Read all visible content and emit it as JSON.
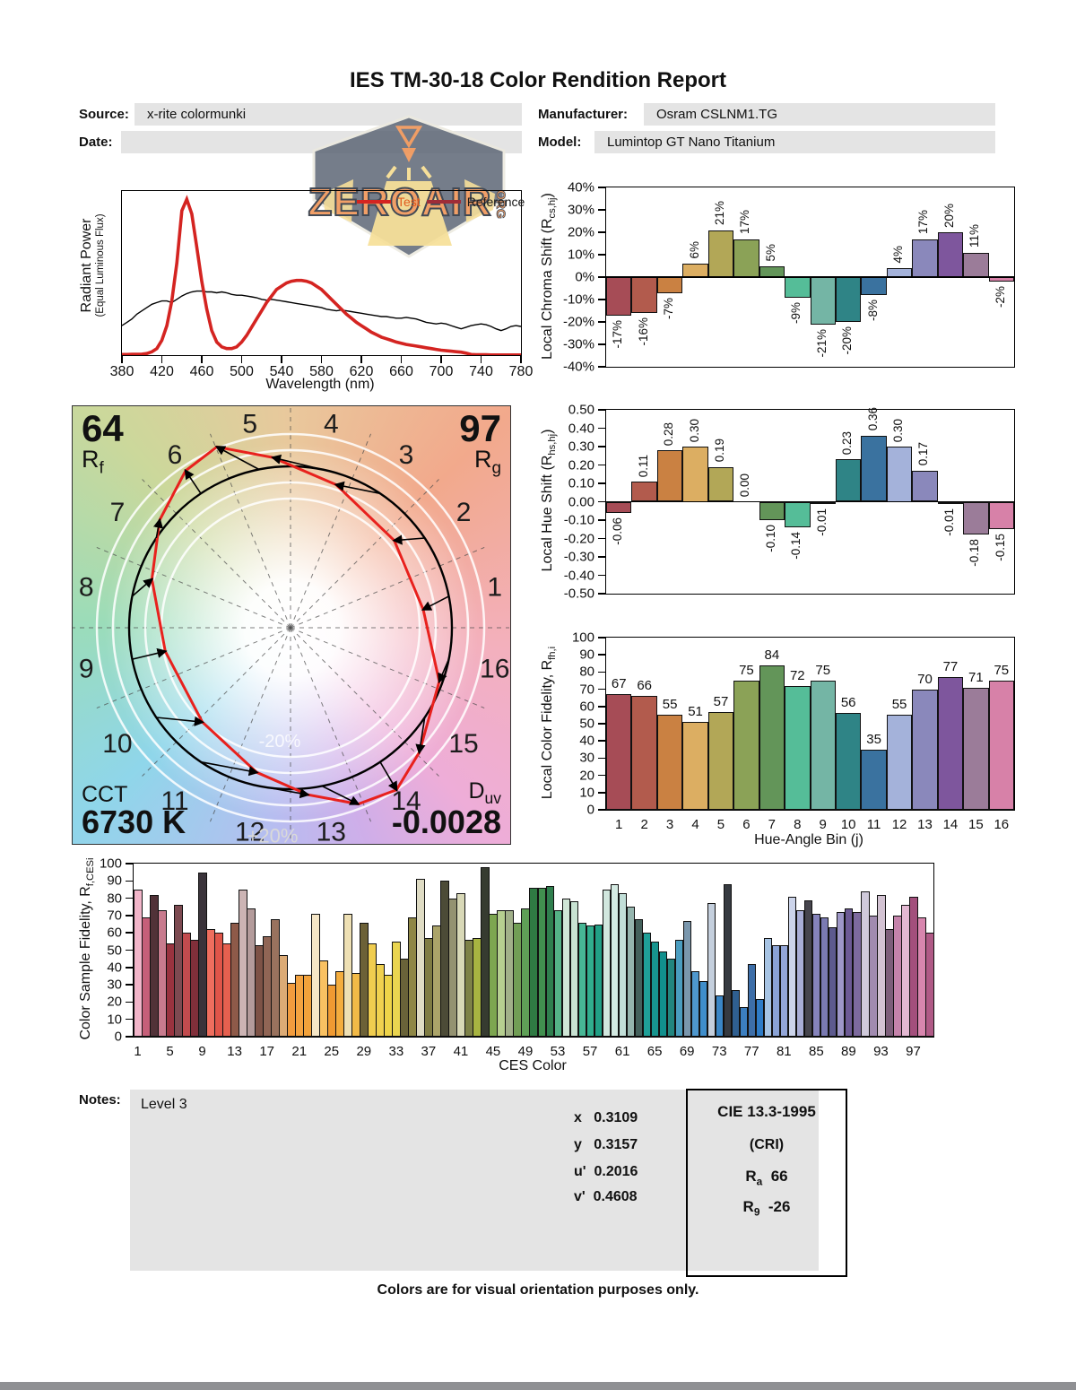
{
  "page": {
    "title": "IES TM-30-18 Color Rendition Report",
    "footer": "Colors are for visual orientation purposes only."
  },
  "fields": {
    "source_label": "Source:",
    "source_value": "x-rite colormunki",
    "date_label": "Date:",
    "date_value": "",
    "manufacturer_label": "Manufacturer:",
    "manufacturer_value": "Osram CSLNM1.TG",
    "model_label": "Model:",
    "model_value": "Lumintop GT Nano Titanium"
  },
  "logo": {
    "brand": "ZEROAIR",
    "suffix": "ORG"
  },
  "notes": {
    "label": "Notes:",
    "value": "Level 3"
  },
  "chromaticity": [
    {
      "label": "x",
      "value": "0.3109"
    },
    {
      "label": "y",
      "value": "0.3157"
    },
    {
      "label": "u'",
      "value": "0.2016"
    },
    {
      "label": "v'",
      "value": "0.4608"
    }
  ],
  "cie": {
    "title": "CIE 13.3-1995",
    "subtitle": "(CRI)",
    "ra_pre": "R",
    "ra_sub": "a",
    "ra_value": "66",
    "r9_pre": "R",
    "r9_sub": "9",
    "r9_value": "-26"
  },
  "bin_colors": [
    "#a64c56",
    "#b25b4d",
    "#ca8142",
    "#dcae62",
    "#b2a757",
    "#8ba257",
    "#639559",
    "#55bd98",
    "#74b5a5",
    "#2f8486",
    "#3a729f",
    "#a4b2da",
    "#8a88bb",
    "#7e569d",
    "#9b7c99",
    "#d781a8"
  ],
  "chart_data": [
    {
      "id": "spd",
      "type": "line",
      "xlabel": "Wavelength (nm)",
      "ylabel_line1": "Radiant Power",
      "ylabel_line2": "(Equal Luminous Flux)",
      "legend": [
        "Test",
        "Reference"
      ],
      "test_color": "#d42421",
      "reference_color": "#000000",
      "xlim": [
        380,
        780
      ],
      "x_tick_step": 40,
      "x_ticks": [
        "380",
        "420",
        "460",
        "500",
        "540",
        "580",
        "620",
        "660",
        "700",
        "740",
        "780"
      ],
      "x": [
        380,
        385,
        390,
        395,
        400,
        405,
        410,
        415,
        420,
        425,
        430,
        435,
        440,
        445,
        450,
        455,
        460,
        465,
        470,
        475,
        480,
        485,
        490,
        495,
        500,
        505,
        510,
        515,
        520,
        525,
        530,
        535,
        540,
        545,
        550,
        555,
        560,
        565,
        570,
        575,
        580,
        585,
        590,
        595,
        600,
        605,
        610,
        615,
        620,
        625,
        630,
        635,
        640,
        645,
        650,
        655,
        660,
        665,
        670,
        675,
        680,
        685,
        690,
        695,
        700,
        705,
        710,
        715,
        720,
        725,
        730,
        735,
        740,
        745,
        750,
        755,
        760,
        765,
        770,
        775,
        780
      ],
      "series": [
        {
          "name": "Test",
          "values": [
            0.004,
            0.004,
            0.005,
            0.005,
            0.006,
            0.01,
            0.02,
            0.04,
            0.09,
            0.18,
            0.33,
            0.56,
            0.88,
            0.95,
            0.86,
            0.66,
            0.45,
            0.28,
            0.15,
            0.08,
            0.05,
            0.04,
            0.04,
            0.05,
            0.08,
            0.12,
            0.17,
            0.22,
            0.27,
            0.32,
            0.36,
            0.4,
            0.42,
            0.44,
            0.45,
            0.455,
            0.455,
            0.45,
            0.44,
            0.42,
            0.4,
            0.37,
            0.34,
            0.31,
            0.28,
            0.25,
            0.225,
            0.2,
            0.18,
            0.16,
            0.14,
            0.125,
            0.11,
            0.1,
            0.09,
            0.08,
            0.072,
            0.065,
            0.06,
            0.055,
            0.05,
            0.045,
            0.04,
            0.035,
            0.03,
            0.027,
            0.024,
            0.021,
            0.018,
            0.012,
            0.004,
            0.003,
            0.002,
            0.002,
            0.001,
            0.001,
            0.001,
            0.001,
            0.001,
            0.001,
            0.001
          ]
        },
        {
          "name": "Reference",
          "values": [
            0.18,
            0.2,
            0.22,
            0.25,
            0.27,
            0.29,
            0.31,
            0.32,
            0.33,
            0.33,
            0.32,
            0.34,
            0.36,
            0.375,
            0.385,
            0.39,
            0.39,
            0.385,
            0.385,
            0.38,
            0.385,
            0.38,
            0.37,
            0.365,
            0.365,
            0.36,
            0.355,
            0.35,
            0.34,
            0.335,
            0.34,
            0.335,
            0.33,
            0.325,
            0.32,
            0.315,
            0.31,
            0.305,
            0.3,
            0.295,
            0.29,
            0.28,
            0.275,
            0.27,
            0.275,
            0.27,
            0.265,
            0.26,
            0.255,
            0.25,
            0.245,
            0.24,
            0.235,
            0.235,
            0.23,
            0.225,
            0.225,
            0.23,
            0.225,
            0.22,
            0.21,
            0.2,
            0.195,
            0.19,
            0.195,
            0.19,
            0.18,
            0.17,
            0.16,
            0.17,
            0.18,
            0.185,
            0.19,
            0.185,
            0.175,
            0.16,
            0.15,
            0.16,
            0.175,
            0.18,
            0.175
          ]
        }
      ]
    },
    {
      "id": "chroma_shift",
      "type": "bar",
      "ylabel_parts": {
        "pre": "Local Chroma Shift (R",
        "sub": "cs,hj",
        "post": ")"
      },
      "ylim": [
        -40,
        40
      ],
      "y_ticks": [
        "40%",
        "30%",
        "20%",
        "10%",
        "0%",
        "-10%",
        "-20%",
        "-30%",
        "-40%"
      ],
      "values": [
        -17,
        -16,
        -7,
        6,
        21,
        17,
        5,
        -9,
        -21,
        -20,
        -8,
        4,
        17,
        20,
        11,
        -2
      ],
      "labels": [
        "-17%",
        "-16%",
        "-7%",
        "6%",
        "21%",
        "17%",
        "5%",
        "-9%",
        "-21%",
        "-20%",
        "-8%",
        "4%",
        "17%",
        "20%",
        "11%",
        "-2%"
      ]
    },
    {
      "id": "hue_shift",
      "type": "bar",
      "ylabel_parts": {
        "pre": "Local Hue Shift (R",
        "sub": "hs,hj",
        "post": ")"
      },
      "ylim": [
        -0.5,
        0.5
      ],
      "y_ticks": [
        "0.50",
        "0.40",
        "0.30",
        "0.20",
        "0.10",
        "0.00",
        "-0.10",
        "-0.20",
        "-0.30",
        "-0.40",
        "-0.50"
      ],
      "values": [
        -0.06,
        0.11,
        0.28,
        0.3,
        0.19,
        0.0,
        -0.1,
        -0.14,
        -0.01,
        0.23,
        0.36,
        0.3,
        0.17,
        -0.01,
        -0.18,
        -0.15
      ],
      "labels": [
        "-0.06",
        "0.11",
        "0.28",
        "0.30",
        "0.19",
        "0.00",
        "-0.10",
        "-0.14",
        "-0.01",
        "0.23",
        "0.36",
        "0.30",
        "0.17",
        "-0.01",
        "-0.18",
        "-0.15"
      ]
    },
    {
      "id": "local_fidelity",
      "type": "bar",
      "ylabel_parts": {
        "pre": "Local Color Fidelity, R",
        "sub": "fh,i",
        "post": ""
      },
      "xlabel": "Hue-Angle Bin (j)",
      "ylim": [
        0,
        100
      ],
      "y_ticks": [
        "100",
        "90",
        "80",
        "70",
        "60",
        "50",
        "40",
        "30",
        "20",
        "10",
        "0"
      ],
      "categories": [
        "1",
        "2",
        "3",
        "4",
        "5",
        "6",
        "7",
        "8",
        "9",
        "10",
        "11",
        "12",
        "13",
        "14",
        "15",
        "16"
      ],
      "values": [
        67,
        66,
        55,
        51,
        57,
        75,
        84,
        72,
        75,
        56,
        35,
        55,
        70,
        77,
        71,
        75
      ]
    },
    {
      "id": "ces_fidelity",
      "type": "bar",
      "ylabel_parts": {
        "pre": "Color Sample Fidelity, R",
        "sub": "f,CESi",
        "post": ""
      },
      "xlabel": "CES Color",
      "ylim": [
        0,
        100
      ],
      "y_ticks": [
        "100",
        "90",
        "80",
        "70",
        "60",
        "50",
        "40",
        "30",
        "20",
        "10",
        "0"
      ],
      "x_tick_labels": [
        "1",
        "5",
        "9",
        "13",
        "17",
        "21",
        "25",
        "29",
        "33",
        "37",
        "41",
        "45",
        "49",
        "53",
        "57",
        "61",
        "65",
        "69",
        "73",
        "77",
        "81",
        "85",
        "89",
        "93",
        "97"
      ],
      "values": [
        85,
        69,
        82,
        73,
        54,
        76,
        60,
        56,
        95,
        62,
        60,
        54,
        66,
        85,
        74,
        53,
        58,
        68,
        47,
        31,
        36,
        36,
        71,
        44,
        30,
        38,
        71,
        37,
        66,
        54,
        42,
        36,
        55,
        45,
        69,
        91,
        57,
        64,
        90,
        80,
        83,
        56,
        57,
        98,
        71,
        73,
        73,
        66,
        74,
        86,
        86,
        87,
        73,
        80,
        78,
        66,
        64,
        65,
        85,
        88,
        83,
        75,
        68,
        60,
        55,
        49,
        45,
        56,
        67,
        38,
        32,
        77,
        24,
        88,
        27,
        17,
        42,
        22,
        57,
        53,
        53,
        81,
        73,
        79,
        71,
        69,
        63,
        72,
        74,
        72,
        84,
        70,
        82,
        62,
        70,
        76,
        81,
        69,
        60
      ],
      "colors": [
        "#f2b5c9",
        "#c65f79",
        "#513238",
        "#c87b8e",
        "#99333f",
        "#7d4a51",
        "#c24b4e",
        "#812f3a",
        "#3a333a",
        "#ef6e5e",
        "#e05549",
        "#e6604f",
        "#8e5a49",
        "#ccb4b4",
        "#b39b9b",
        "#7d5246",
        "#906555",
        "#99725e",
        "#dcab76",
        "#f29c3e",
        "#f4a340",
        "#f2a23b",
        "#f5e6c6",
        "#f9c162",
        "#f09a32",
        "#f4ad3e",
        "#eee0b4",
        "#f2ba47",
        "#6c6137",
        "#f0cd4f",
        "#f0d14f",
        "#eed449",
        "#ead550",
        "#696339",
        "#8e8745",
        "#dfdcc4",
        "#7f7c43",
        "#aba469",
        "#4c4b37",
        "#949271",
        "#d8d8b7",
        "#7d8147",
        "#a7b441",
        "#363b30",
        "#7da650",
        "#b6cf90",
        "#a1b089",
        "#719e55",
        "#5fa057",
        "#2f7a43",
        "#41904f",
        "#2f7f4e",
        "#54b286",
        "#cfe6d6",
        "#c8e2d2",
        "#47b795",
        "#31ae8e",
        "#21a086",
        "#d1e7de",
        "#d4eae2",
        "#c2dfd8",
        "#95b5ae",
        "#44615c",
        "#1fa098",
        "#17958f",
        "#11908d",
        "#22867f",
        "#4a9dc0",
        "#7a97ad",
        "#4e97cd",
        "#3f8ecb",
        "#c4cfdd",
        "#3a86c6",
        "#363a40",
        "#2f5f90",
        "#3c7fc0",
        "#3d6ea8",
        "#2e7bc6",
        "#a7c4e4",
        "#8aa3d6",
        "#93a6d8",
        "#ccd4ea",
        "#a9aed6",
        "#46454d",
        "#8583bb",
        "#7a7ab2",
        "#5d5a8e",
        "#9e97c8",
        "#6d5a95",
        "#7d6a9e",
        "#cfc9da",
        "#a18bb0",
        "#d3c3d3",
        "#7d5e7a",
        "#c583ab",
        "#e3b8d2",
        "#a34f7c",
        "#d886ae",
        "#b05a86"
      ]
    },
    {
      "id": "color_vector",
      "type": "polar",
      "rf": "64",
      "rf_pre": "R",
      "rf_sub": "f",
      "rg": "97",
      "rg_pre": "R",
      "rg_sub": "g",
      "cct_label": "CCT",
      "cct": "6730 K",
      "duv_pre": "D",
      "duv_sub": "uv",
      "duv": "-0.0028",
      "plus_label": "+20%",
      "minus_label": "-20%",
      "bins": [
        "1",
        "2",
        "3",
        "4",
        "5",
        "6",
        "7",
        "8",
        "9",
        "10",
        "11",
        "12",
        "13",
        "14",
        "15",
        "16"
      ],
      "chroma_shift_pct": [
        -17,
        -16,
        -7,
        6,
        21,
        17,
        5,
        -9,
        -21,
        -20,
        -8,
        4,
        17,
        20,
        11,
        -2
      ],
      "hue_shift": [
        -0.06,
        0.11,
        0.28,
        0.3,
        0.19,
        0.0,
        -0.1,
        -0.14,
        -0.01,
        0.23,
        0.36,
        0.3,
        0.17,
        -0.01,
        -0.18,
        -0.15
      ]
    }
  ]
}
